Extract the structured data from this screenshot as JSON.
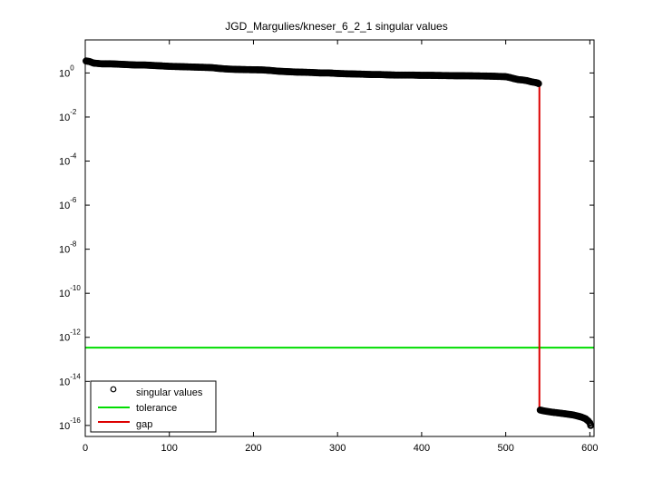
{
  "chart_data": {
    "type": "scatter",
    "title": "JGD_Margulies/kneser_6_2_1 singular values",
    "xlabel": "",
    "ylabel": "",
    "xlim": [
      0,
      605
    ],
    "ylim": [
      3.16e-17,
      31.6
    ],
    "yscale": "log",
    "grid": false,
    "legend_position": "bottom-left",
    "x_ticks": [
      0,
      100,
      200,
      300,
      400,
      500,
      600
    ],
    "y_ticks": [
      {
        "value": 1,
        "base": "10",
        "exp": "0"
      },
      {
        "value": 0.01,
        "base": "10",
        "exp": "-2"
      },
      {
        "value": 0.0001,
        "base": "10",
        "exp": "-4"
      },
      {
        "value": 1e-06,
        "base": "10",
        "exp": "-6"
      },
      {
        "value": 1e-08,
        "base": "10",
        "exp": "-8"
      },
      {
        "value": 1e-10,
        "base": "10",
        "exp": "-10"
      },
      {
        "value": 1e-12,
        "base": "10",
        "exp": "-12"
      },
      {
        "value": 1e-14,
        "base": "10",
        "exp": "-14"
      },
      {
        "value": 1e-16,
        "base": "10",
        "exp": "-16"
      }
    ],
    "series": [
      {
        "name": "singular values",
        "style": "markers",
        "color": "#000000",
        "points": [
          [
            1,
            3.5
          ],
          [
            5,
            3.3
          ],
          [
            10,
            2.8
          ],
          [
            20,
            2.6
          ],
          [
            30,
            2.6
          ],
          [
            40,
            2.5
          ],
          [
            50,
            2.4
          ],
          [
            60,
            2.3
          ],
          [
            70,
            2.3
          ],
          [
            80,
            2.2
          ],
          [
            90,
            2.1
          ],
          [
            100,
            2.0
          ],
          [
            110,
            1.95
          ],
          [
            120,
            1.9
          ],
          [
            130,
            1.85
          ],
          [
            140,
            1.8
          ],
          [
            150,
            1.75
          ],
          [
            160,
            1.6
          ],
          [
            170,
            1.5
          ],
          [
            180,
            1.45
          ],
          [
            190,
            1.42
          ],
          [
            200,
            1.4
          ],
          [
            210,
            1.38
          ],
          [
            220,
            1.3
          ],
          [
            230,
            1.2
          ],
          [
            240,
            1.15
          ],
          [
            250,
            1.1
          ],
          [
            260,
            1.08
          ],
          [
            270,
            1.05
          ],
          [
            280,
            1.0
          ],
          [
            290,
            1.0
          ],
          [
            300,
            0.95
          ],
          [
            310,
            0.92
          ],
          [
            320,
            0.9
          ],
          [
            330,
            0.88
          ],
          [
            340,
            0.85
          ],
          [
            350,
            0.85
          ],
          [
            360,
            0.82
          ],
          [
            370,
            0.8
          ],
          [
            380,
            0.8
          ],
          [
            390,
            0.8
          ],
          [
            400,
            0.78
          ],
          [
            410,
            0.78
          ],
          [
            420,
            0.77
          ],
          [
            430,
            0.76
          ],
          [
            440,
            0.75
          ],
          [
            450,
            0.75
          ],
          [
            460,
            0.74
          ],
          [
            470,
            0.73
          ],
          [
            480,
            0.72
          ],
          [
            490,
            0.7
          ],
          [
            500,
            0.68
          ],
          [
            505,
            0.62
          ],
          [
            510,
            0.55
          ],
          [
            515,
            0.5
          ],
          [
            520,
            0.48
          ],
          [
            525,
            0.45
          ],
          [
            530,
            0.4
          ],
          [
            535,
            0.37
          ],
          [
            538,
            0.35
          ],
          [
            539,
            0.33
          ],
          [
            541,
            5e-16
          ],
          [
            543,
            4.8e-16
          ],
          [
            545,
            4.6e-16
          ],
          [
            550,
            4.3e-16
          ],
          [
            555,
            4e-16
          ],
          [
            560,
            3.8e-16
          ],
          [
            565,
            3.6e-16
          ],
          [
            570,
            3.4e-16
          ],
          [
            575,
            3.2e-16
          ],
          [
            580,
            3e-16
          ],
          [
            585,
            2.7e-16
          ],
          [
            590,
            2.4e-16
          ],
          [
            595,
            2e-16
          ],
          [
            598,
            1.6e-16
          ],
          [
            600,
            1.3e-16
          ],
          [
            601,
            1e-16
          ]
        ]
      },
      {
        "name": "tolerance",
        "style": "hline",
        "color": "#00dd00",
        "value": 3.4e-13
      },
      {
        "name": "gap",
        "style": "vline",
        "color": "#dd0000",
        "x": 540,
        "y_range": [
          5e-16,
          0.33
        ]
      }
    ]
  }
}
